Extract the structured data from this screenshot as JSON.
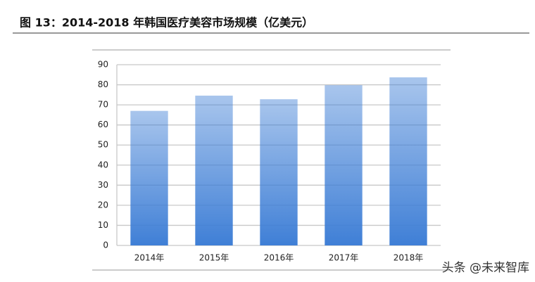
{
  "chart_data": {
    "type": "bar",
    "title": "图 13：2014-2018 年韩国医疗美容市场规模（亿美元）",
    "categories": [
      "2014年",
      "2015年",
      "2016年",
      "2017年",
      "2018年"
    ],
    "values": [
      67,
      74.6,
      72.8,
      79.8,
      83.7
    ],
    "color": "#3f7fd6",
    "ylim": [
      0,
      90
    ],
    "yticks": [
      0,
      10,
      20,
      30,
      40,
      50,
      60,
      70,
      80,
      90
    ],
    "grid": true,
    "watermark": "头条 @未来智库"
  }
}
